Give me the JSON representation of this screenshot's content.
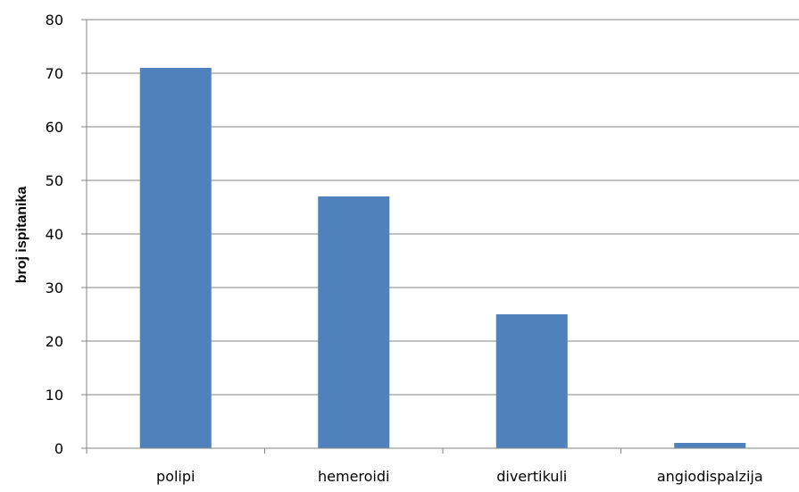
{
  "chart_data": {
    "type": "bar",
    "title": "",
    "xlabel": "",
    "ylabel": "broj ispitanika",
    "categories": [
      "polipi",
      "hemeroidi",
      "divertikuli",
      "angiodispalzija"
    ],
    "values": [
      71,
      47,
      25,
      1
    ],
    "ylim": [
      0,
      80
    ],
    "yticks": [
      "0",
      "10",
      "20",
      "30",
      "40",
      "50",
      "60",
      "70",
      "80"
    ],
    "grid": true,
    "legend": "none",
    "colors": {
      "bar": "#4f81bd",
      "grid": "#868686",
      "axis": "#868686"
    }
  }
}
